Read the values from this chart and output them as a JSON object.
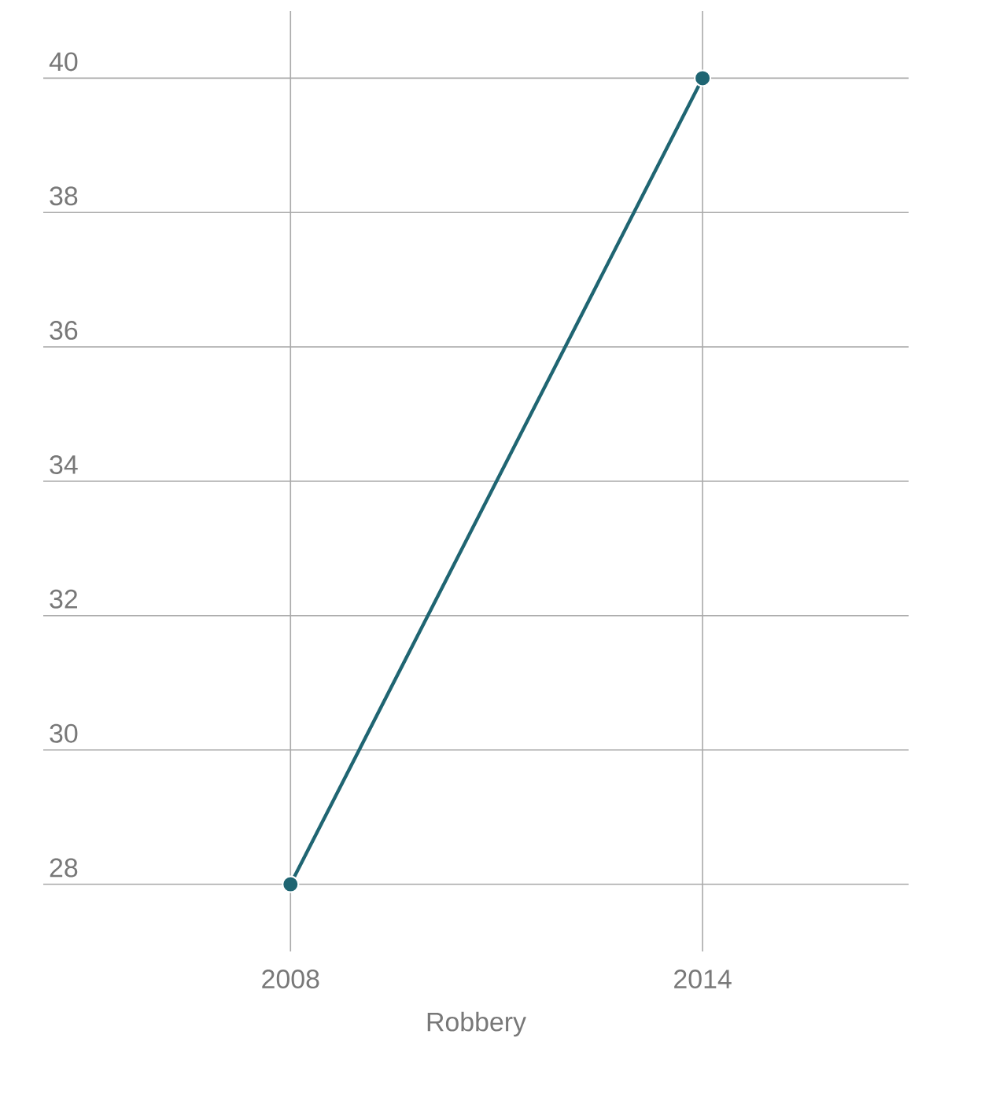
{
  "chart_data": {
    "type": "line",
    "x": [
      2008,
      2014
    ],
    "xlim": [
      2004.4,
      2017
    ],
    "xticks": [
      2008,
      2014
    ],
    "ylim": [
      27,
      41
    ],
    "yticks": [
      28,
      30,
      32,
      34,
      36,
      38,
      40
    ],
    "grid": true,
    "marker": "circle",
    "xlabel": "Robbery",
    "series": [
      {
        "color": "#1f6572",
        "values": [
          28,
          40
        ]
      }
    ]
  }
}
